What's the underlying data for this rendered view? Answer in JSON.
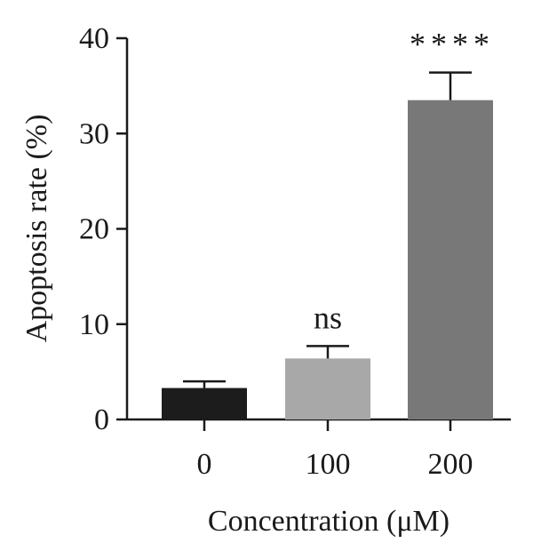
{
  "chart_data": {
    "type": "bar",
    "title": "",
    "xlabel": "Concentration (μM)",
    "ylabel": "Apoptosis rate (%)",
    "ylim": [
      0,
      40
    ],
    "yticks": [
      0,
      10,
      20,
      30,
      40
    ],
    "categories": [
      "0",
      "100",
      "200"
    ],
    "values": [
      3.3,
      6.4,
      33.5
    ],
    "errors": [
      0.7,
      1.3,
      2.9
    ],
    "significance": [
      "",
      "ns",
      "****"
    ],
    "bar_colors": [
      "#1c1c1c",
      "#a8a8a8",
      "#787878"
    ],
    "grid": false,
    "legend": "none"
  }
}
